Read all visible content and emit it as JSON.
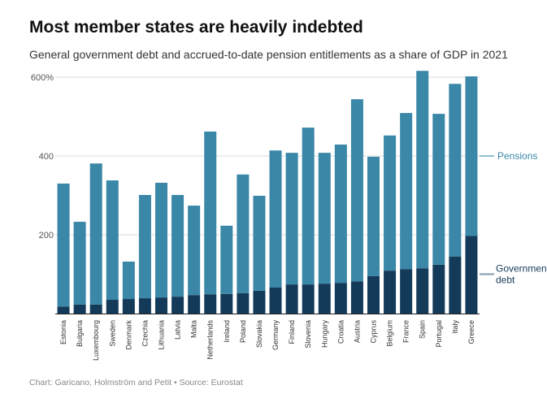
{
  "chart_data": {
    "type": "bar",
    "stacked": true,
    "title": "Most member states are heavily indebted",
    "subtitle": "General government debt and accrued-to-date pension entitlements as a share of GDP in 2021",
    "source": "Chart: Garicano, Holmström and Petit • Source: Eurostat",
    "xlabel": "",
    "ylabel": "",
    "ylim": [
      0,
      600
    ],
    "yticks": [
      {
        "value": 200,
        "label": "200"
      },
      {
        "value": 400,
        "label": "400"
      },
      {
        "value": 600,
        "label": "600%"
      }
    ],
    "grid": true,
    "categories": [
      "Estonia",
      "Bulgaria",
      "Luxembourg",
      "Sweden",
      "Denmark",
      "Czechia",
      "Lithuania",
      "Latvia",
      "Malta",
      "Netherlands",
      "Ireland",
      "Poland",
      "Slovakia",
      "Germany",
      "Finland",
      "Slovenia",
      "Hungary",
      "Croatia",
      "Austria",
      "Cyprus",
      "Belgium",
      "France",
      "Spain",
      "Portugal",
      "Italy",
      "Greece"
    ],
    "series": [
      {
        "name": "Government debt",
        "color": "#143a59",
        "values": [
          18,
          23,
          23,
          35,
          37,
          39,
          41,
          43,
          47,
          49,
          50,
          52,
          58,
          66,
          74,
          74,
          76,
          78,
          82,
          95,
          109,
          113,
          115,
          124,
          145,
          197
        ]
      },
      {
        "name": "Pensions",
        "color": "#3a87a8",
        "values": [
          312,
          210,
          358,
          303,
          95,
          262,
          291,
          258,
          227,
          413,
          173,
          301,
          241,
          348,
          334,
          398,
          332,
          351,
          462,
          303,
          343,
          396,
          501,
          383,
          438,
          405
        ]
      }
    ],
    "legend": [
      {
        "label": "Pensions"
      },
      {
        "label": "Government debt"
      }
    ]
  }
}
